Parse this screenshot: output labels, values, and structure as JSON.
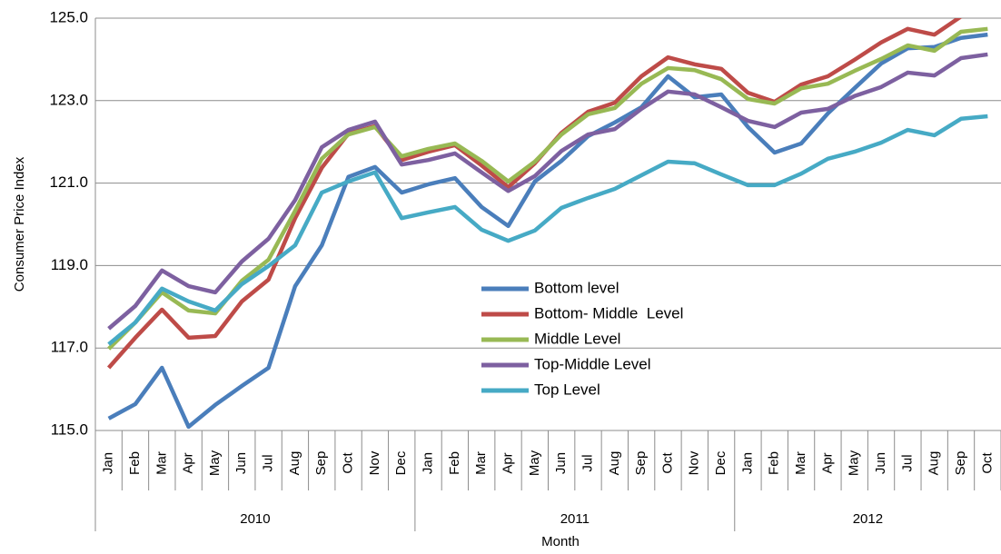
{
  "chart_data": {
    "type": "line",
    "y_label": "Consumer Price Index",
    "x_label": "Month",
    "categories": [
      "Jan",
      "Feb",
      "Mar",
      "Apr",
      "May",
      "Jun",
      "Jul",
      "Aug",
      "Sep",
      "Oct",
      "Nov",
      "Dec",
      "Jan",
      "Feb",
      "Mar",
      "Apr",
      "May",
      "Jun",
      "Jul",
      "Aug",
      "Sep",
      "Oct",
      "Nov",
      "Dec",
      "Jan",
      "Feb",
      "Mar",
      "Apr",
      "May",
      "Jun",
      "Jul",
      "Aug",
      "Sep",
      "Oct"
    ],
    "years": [
      "2010",
      "2011",
      "2012"
    ],
    "ylim": [
      115,
      125
    ],
    "yticks": [
      {
        "value": 115,
        "label": "115.0"
      },
      {
        "value": 117,
        "label": "117.0"
      },
      {
        "value": 119,
        "label": "119.0"
      },
      {
        "value": 121,
        "label": "121.0"
      },
      {
        "value": 123,
        "label": "123.0"
      },
      {
        "value": 125,
        "label": "125.0"
      }
    ],
    "grid": true,
    "legend": "center",
    "series": [
      {
        "name": "Bottom level",
        "color": "#4a7ebb",
        "values": [
          115.29,
          115.64,
          116.52,
          115.09,
          115.62,
          116.08,
          116.52,
          118.5,
          119.49,
          121.15,
          121.39,
          120.77,
          120.97,
          121.12,
          120.42,
          119.96,
          121.04,
          121.54,
          122.14,
          122.47,
          122.84,
          123.59,
          123.08,
          123.15,
          122.36,
          121.74,
          121.96,
          122.69,
          123.3,
          123.9,
          124.27,
          124.3,
          124.52,
          124.6
        ]
      },
      {
        "name": "Bottom- Middle  Level",
        "color": "#be4b48",
        "values": [
          116.52,
          117.25,
          117.93,
          117.25,
          117.29,
          118.13,
          118.66,
          120.15,
          121.37,
          122.2,
          122.38,
          121.56,
          121.76,
          121.92,
          121.43,
          120.9,
          121.48,
          122.22,
          122.73,
          122.95,
          123.59,
          124.05,
          123.88,
          123.77,
          123.19,
          122.97,
          123.39,
          123.59,
          123.99,
          124.41,
          124.74,
          124.6,
          125.04,
          125.3
        ]
      },
      {
        "name": "Middle Level",
        "color": "#98b954",
        "values": [
          116.98,
          117.62,
          118.35,
          117.91,
          117.84,
          118.63,
          119.14,
          120.33,
          121.59,
          122.18,
          122.36,
          121.65,
          121.83,
          121.96,
          121.54,
          121.04,
          121.52,
          122.18,
          122.67,
          122.82,
          123.41,
          123.79,
          123.74,
          123.52,
          123.04,
          122.93,
          123.3,
          123.41,
          123.72,
          124.01,
          124.34,
          124.21,
          124.67,
          124.74
        ]
      },
      {
        "name": "Top-Middle Level",
        "color": "#7d60a0",
        "values": [
          117.47,
          118.02,
          118.88,
          118.5,
          118.35,
          119.1,
          119.65,
          120.59,
          121.87,
          122.29,
          122.49,
          121.45,
          121.56,
          121.72,
          121.26,
          120.81,
          121.17,
          121.78,
          122.18,
          122.31,
          122.8,
          123.22,
          123.15,
          122.84,
          122.51,
          122.36,
          122.71,
          122.8,
          123.11,
          123.33,
          123.68,
          123.61,
          124.03,
          124.12
        ]
      },
      {
        "name": "Top Level",
        "color": "#46aac5",
        "values": [
          117.09,
          117.62,
          118.44,
          118.13,
          117.91,
          118.55,
          118.99,
          119.49,
          120.77,
          121.04,
          121.26,
          120.15,
          120.29,
          120.42,
          119.87,
          119.6,
          119.85,
          120.4,
          120.64,
          120.86,
          121.19,
          121.52,
          121.48,
          121.21,
          120.95,
          120.95,
          121.23,
          121.59,
          121.76,
          121.98,
          122.29,
          122.16,
          122.56,
          122.62
        ]
      }
    ]
  }
}
